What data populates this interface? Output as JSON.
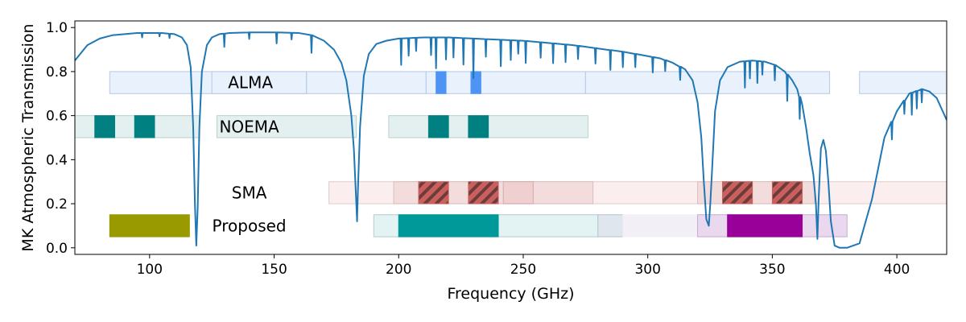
{
  "chart_data": {
    "type": "line",
    "title": "",
    "xlabel": "Frequency (GHz)",
    "ylabel": "MK Atmospheric Transmission",
    "xlim": [
      70,
      420
    ],
    "ylim": [
      -0.03,
      1.03
    ],
    "xticks": [
      100,
      150,
      200,
      250,
      300,
      350,
      400
    ],
    "yticks": [
      0.0,
      0.2,
      0.4,
      0.6,
      0.8,
      1.0
    ],
    "grid": false,
    "legend": "none",
    "series": [
      {
        "color": "#1f77b4",
        "x": [
          70,
          75,
          80,
          85,
          90,
          95,
          100,
          105,
          110,
          113,
          115,
          116.5,
          117.5,
          118.2,
          118.75,
          119.3,
          120,
          121,
          123,
          125,
          128,
          132,
          140,
          150,
          160,
          165,
          170,
          174,
          177,
          179,
          181,
          182,
          183,
          183.3,
          183.6,
          184.5,
          186,
          188,
          191,
          195,
          200,
          210,
          220,
          230,
          240,
          250,
          260,
          270,
          280,
          290,
          300,
          305,
          310,
          315,
          318,
          320,
          321.5,
          322.5,
          323.5,
          324.5,
          325.1,
          325.8,
          327,
          329,
          332,
          337,
          342,
          347,
          351,
          355,
          358,
          360,
          362,
          363.5,
          365,
          366.5,
          367.5,
          368.1,
          368.6,
          369.5,
          370.5,
          371.5,
          372.5,
          373.5,
          375,
          377,
          380,
          385,
          390,
          395,
          400,
          405,
          410,
          413,
          416,
          420
        ],
        "y": [
          0.85,
          0.92,
          0.95,
          0.965,
          0.97,
          0.975,
          0.975,
          0.975,
          0.97,
          0.955,
          0.92,
          0.82,
          0.55,
          0.2,
          0.01,
          0.18,
          0.55,
          0.8,
          0.92,
          0.955,
          0.97,
          0.975,
          0.978,
          0.978,
          0.975,
          0.965,
          0.94,
          0.9,
          0.84,
          0.76,
          0.6,
          0.45,
          0.2,
          0.12,
          0.25,
          0.55,
          0.78,
          0.88,
          0.925,
          0.94,
          0.95,
          0.955,
          0.955,
          0.95,
          0.945,
          0.94,
          0.93,
          0.92,
          0.905,
          0.89,
          0.87,
          0.86,
          0.84,
          0.81,
          0.76,
          0.66,
          0.5,
          0.3,
          0.13,
          0.1,
          0.2,
          0.35,
          0.62,
          0.76,
          0.82,
          0.845,
          0.85,
          0.845,
          0.83,
          0.8,
          0.76,
          0.72,
          0.65,
          0.55,
          0.43,
          0.33,
          0.2,
          0.04,
          0.22,
          0.45,
          0.49,
          0.44,
          0.3,
          0.12,
          0.01,
          0.0,
          0.0,
          0.02,
          0.22,
          0.5,
          0.62,
          0.7,
          0.72,
          0.71,
          0.68,
          0.58
        ]
      }
    ],
    "absorption_lines": [
      {
        "x": 97,
        "depth": 0.02
      },
      {
        "x": 104,
        "depth": 0.015
      },
      {
        "x": 108,
        "depth": 0.02
      },
      {
        "x": 130,
        "depth": 0.06
      },
      {
        "x": 140,
        "depth": 0.03
      },
      {
        "x": 151,
        "depth": 0.05
      },
      {
        "x": 157,
        "depth": 0.03
      },
      {
        "x": 165,
        "depth": 0.08
      },
      {
        "x": 201,
        "depth": 0.12
      },
      {
        "x": 204,
        "depth": 0.08
      },
      {
        "x": 207,
        "depth": 0.06
      },
      {
        "x": 213,
        "depth": 0.08
      },
      {
        "x": 215,
        "depth": 0.14
      },
      {
        "x": 219,
        "depth": 0.1
      },
      {
        "x": 222,
        "depth": 0.09
      },
      {
        "x": 226,
        "depth": 0.12
      },
      {
        "x": 230,
        "depth": 0.18
      },
      {
        "x": 235,
        "depth": 0.08
      },
      {
        "x": 241,
        "depth": 0.12
      },
      {
        "x": 245,
        "depth": 0.09
      },
      {
        "x": 248,
        "depth": 0.06
      },
      {
        "x": 251,
        "depth": 0.1
      },
      {
        "x": 257,
        "depth": 0.07
      },
      {
        "x": 262,
        "depth": 0.09
      },
      {
        "x": 267,
        "depth": 0.08
      },
      {
        "x": 272,
        "depth": 0.06
      },
      {
        "x": 279,
        "depth": 0.07
      },
      {
        "x": 285,
        "depth": 0.09
      },
      {
        "x": 290,
        "depth": 0.07
      },
      {
        "x": 295,
        "depth": 0.06
      },
      {
        "x": 302,
        "depth": 0.07
      },
      {
        "x": 307,
        "depth": 0.05
      },
      {
        "x": 313,
        "depth": 0.06
      },
      {
        "x": 339,
        "depth": 0.12
      },
      {
        "x": 341,
        "depth": 0.08
      },
      {
        "x": 344,
        "depth": 0.1
      },
      {
        "x": 346,
        "depth": 0.06
      },
      {
        "x": 351,
        "depth": 0.07
      },
      {
        "x": 356,
        "depth": 0.12
      },
      {
        "x": 361,
        "depth": 0.1
      },
      {
        "x": 398,
        "depth": 0.08
      },
      {
        "x": 403,
        "depth": 0.06
      },
      {
        "x": 406,
        "depth": 0.1
      },
      {
        "x": 408,
        "depth": 0.08
      },
      {
        "x": 410,
        "depth": 0.06
      }
    ],
    "bands": [
      {
        "group": "ALMA",
        "x0": 84,
        "x1": 163,
        "y0": 0.7,
        "y1": 0.8,
        "color": "#e8f1fc",
        "edge": "#b5c8e8"
      },
      {
        "group": "ALMA",
        "x0": 125,
        "x1": 163,
        "y0": 0.7,
        "y1": 0.8,
        "color": "#e8f1fc",
        "edge": "#b5c8e8"
      },
      {
        "group": "ALMA",
        "x0": 163,
        "x1": 211,
        "y0": 0.7,
        "y1": 0.8,
        "color": "#e8f1fc",
        "edge": "#b5c8e8"
      },
      {
        "group": "ALMA",
        "x0": 211,
        "x1": 275,
        "y0": 0.7,
        "y1": 0.8,
        "color": "#e8f1fc",
        "edge": "#b5c8e8"
      },
      {
        "group": "ALMA",
        "x0": 275,
        "x1": 373,
        "y0": 0.7,
        "y1": 0.8,
        "color": "#e8f1fc",
        "edge": "#b5c8e8"
      },
      {
        "group": "ALMA",
        "x0": 385,
        "x1": 420,
        "y0": 0.7,
        "y1": 0.8,
        "color": "#e8f1fc",
        "edge": "#b5c8e8"
      },
      {
        "group": "ALMA",
        "x0": 215,
        "x1": 219,
        "y0": 0.7,
        "y1": 0.8,
        "color": "#4d94f5",
        "edge": "#4d94f5"
      },
      {
        "group": "ALMA",
        "x0": 229,
        "x1": 233,
        "y0": 0.7,
        "y1": 0.8,
        "color": "#4d94f5",
        "edge": "#4d94f5"
      },
      {
        "group": "NOEMA",
        "x0": 70,
        "x1": 120,
        "y0": 0.5,
        "y1": 0.6,
        "color": "#e3f0ef",
        "edge": "#b8d2cf"
      },
      {
        "group": "NOEMA",
        "x0": 127,
        "x1": 183,
        "y0": 0.5,
        "y1": 0.6,
        "color": "#e3f0ef",
        "edge": "#b8d2cf"
      },
      {
        "group": "NOEMA",
        "x0": 196,
        "x1": 276,
        "y0": 0.5,
        "y1": 0.6,
        "color": "#e3f0ef",
        "edge": "#b8d2cf"
      },
      {
        "group": "NOEMA",
        "x0": 78,
        "x1": 86,
        "y0": 0.5,
        "y1": 0.6,
        "color": "#008080",
        "edge": "#008080"
      },
      {
        "group": "NOEMA",
        "x0": 94,
        "x1": 102,
        "y0": 0.5,
        "y1": 0.6,
        "color": "#008080",
        "edge": "#008080"
      },
      {
        "group": "NOEMA",
        "x0": 212,
        "x1": 220,
        "y0": 0.5,
        "y1": 0.6,
        "color": "#008080",
        "edge": "#008080"
      },
      {
        "group": "NOEMA",
        "x0": 228,
        "x1": 236,
        "y0": 0.5,
        "y1": 0.6,
        "color": "#008080",
        "edge": "#008080"
      },
      {
        "group": "SMA",
        "x0": 172,
        "x1": 420,
        "y0": 0.2,
        "y1": 0.3,
        "color": "#fbeeee",
        "edge": "#e5c9c9"
      },
      {
        "group": "SMA",
        "x0": 198,
        "x1": 278,
        "y0": 0.2,
        "y1": 0.3,
        "color": "#f2dcdc",
        "edge": "#dcbcbc"
      },
      {
        "group": "SMA",
        "x0": 320,
        "x1": 367,
        "y0": 0.2,
        "y1": 0.3,
        "color": "#f2dcdc",
        "edge": "#dcbcbc"
      },
      {
        "group": "SMA",
        "x0": 242,
        "x1": 254,
        "y0": 0.2,
        "y1": 0.3,
        "color": "#efcfcf",
        "edge": "#d4a9a9"
      },
      {
        "group": "SMA",
        "x0": 208,
        "x1": 220,
        "y0": 0.2,
        "y1": 0.3,
        "color": "#c9605e",
        "edge": "#c9605e",
        "hatch": true
      },
      {
        "group": "SMA",
        "x0": 228,
        "x1": 240,
        "y0": 0.2,
        "y1": 0.3,
        "color": "#c9605e",
        "edge": "#c9605e",
        "hatch": true
      },
      {
        "group": "SMA",
        "x0": 330,
        "x1": 342,
        "y0": 0.2,
        "y1": 0.3,
        "color": "#c9605e",
        "edge": "#c9605e",
        "hatch": true
      },
      {
        "group": "SMA",
        "x0": 350,
        "x1": 362,
        "y0": 0.2,
        "y1": 0.3,
        "color": "#c9605e",
        "edge": "#c9605e",
        "hatch": true
      },
      {
        "group": "Proposed",
        "x0": 84,
        "x1": 116,
        "y0": 0.05,
        "y1": 0.15,
        "color": "#999900",
        "edge": "#999900"
      },
      {
        "group": "Proposed",
        "x0": 190,
        "x1": 280,
        "y0": 0.05,
        "y1": 0.15,
        "color": "#e3f3f3",
        "edge": "#b3cccc"
      },
      {
        "group": "Proposed",
        "x0": 200,
        "x1": 240,
        "y0": 0.05,
        "y1": 0.15,
        "color": "#009999",
        "edge": "#009999"
      },
      {
        "group": "Proposed",
        "x0": 280,
        "x1": 290,
        "y0": 0.05,
        "y1": 0.15,
        "color": "#dfe6ed",
        "edge": "#b8c2cc"
      },
      {
        "group": "Proposed",
        "x0": 290,
        "x1": 320,
        "y0": 0.05,
        "y1": 0.15,
        "color": "#f3eff6",
        "edge": "#f3eff6"
      },
      {
        "group": "Proposed",
        "x0": 320,
        "x1": 380,
        "y0": 0.05,
        "y1": 0.15,
        "color": "#ead8ee",
        "edge": "#c9a9cf"
      },
      {
        "group": "Proposed",
        "x0": 332,
        "x1": 362,
        "y0": 0.05,
        "y1": 0.15,
        "color": "#990099",
        "edge": "#990099"
      }
    ],
    "band_labels": [
      {
        "text": "ALMA",
        "x": 140.5,
        "y": 0.75
      },
      {
        "text": "NOEMA",
        "x": 140,
        "y": 0.55
      },
      {
        "text": "SMA",
        "x": 140,
        "y": 0.25
      },
      {
        "text": "Proposed",
        "x": 140,
        "y": 0.1
      }
    ]
  }
}
